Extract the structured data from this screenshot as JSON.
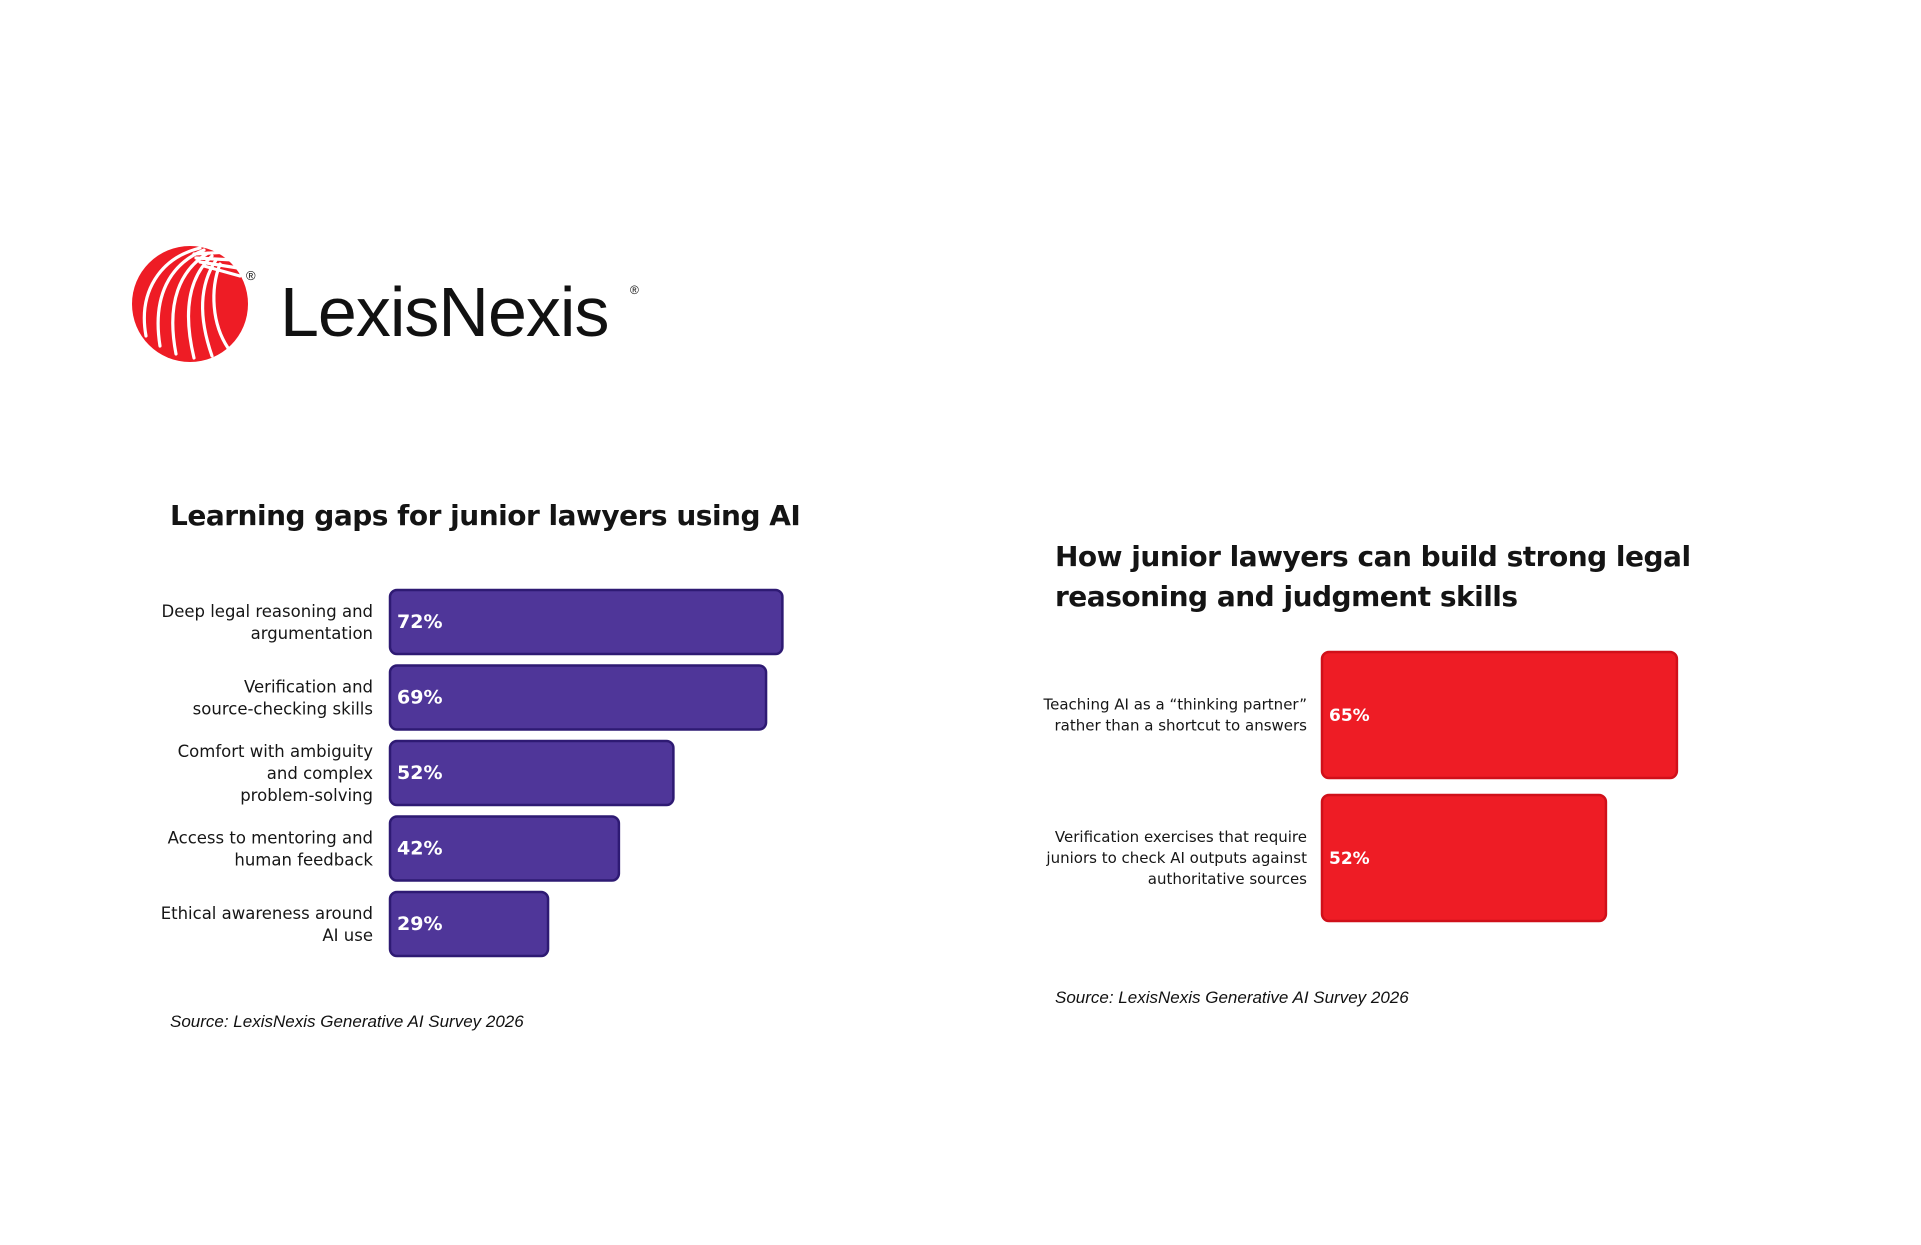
{
  "brand": {
    "name": "LexisNexis",
    "registered_mark": "®",
    "logo_color": "#EE1C25",
    "text_color": "#111111"
  },
  "chart_data": [
    {
      "type": "bar",
      "orientation": "horizontal",
      "title": "Learning gaps for junior lawyers using AI",
      "categories": [
        [
          "Deep legal reasoning and",
          "argumentation"
        ],
        [
          "Verification and",
          "source-checking skills"
        ],
        [
          "Comfort with ambiguity",
          "and complex",
          "problem-solving"
        ],
        [
          "Access to mentoring and",
          "human feedback"
        ],
        [
          "Ethical awareness around",
          "AI use"
        ]
      ],
      "values": [
        72,
        69,
        52,
        42,
        29
      ],
      "value_labels": [
        "72%",
        "69%",
        "52%",
        "42%",
        "29%"
      ],
      "unit": "%",
      "xlim": [
        0,
        100
      ],
      "bar_color": "#4F3699",
      "bar_border_color": "#2E1A73",
      "grid": false,
      "legend": "none",
      "source": "Source: LexisNexis Generative AI Survey 2026"
    },
    {
      "type": "bar",
      "orientation": "horizontal",
      "title": "How junior lawyers can build strong legal reasoning and judgment skills",
      "categories": [
        [
          "Teaching AI as a “thinking partner”",
          "rather than a shortcut to answers"
        ],
        [
          "Verification exercises that require",
          "juniors to check AI outputs against",
          "authoritative sources"
        ]
      ],
      "values": [
        65,
        52
      ],
      "value_labels": [
        "65%",
        "52%"
      ],
      "unit": "%",
      "xlim": [
        0,
        100
      ],
      "bar_color": "#EE1C25",
      "bar_border_color": "#D0101A",
      "grid": false,
      "legend": "none",
      "source": "Source: LexisNexis Generative AI Survey 2026"
    }
  ]
}
